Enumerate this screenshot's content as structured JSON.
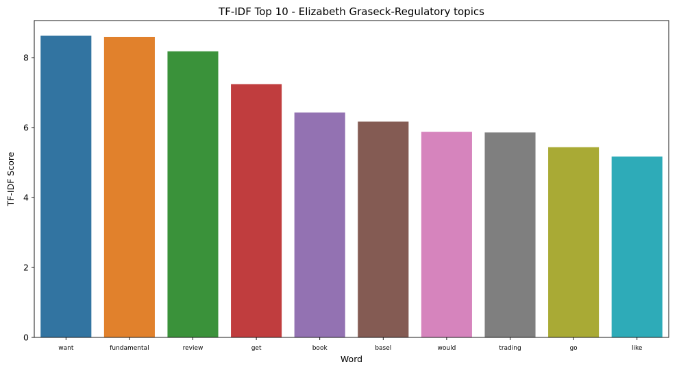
{
  "chart_data": {
    "type": "bar",
    "title": "TF-IDF Top 10 - Elizabeth Graseck-Regulatory topics",
    "xlabel": "Word",
    "ylabel": "TF-IDF Score",
    "categories": [
      "want",
      "fundamental",
      "review",
      "get",
      "book",
      "basel",
      "would",
      "trading",
      "go",
      "like"
    ],
    "values": [
      8.63,
      8.59,
      8.18,
      7.24,
      6.43,
      6.17,
      5.88,
      5.86,
      5.44,
      5.17
    ],
    "colors": [
      "#3274a1",
      "#e1812c",
      "#3a923a",
      "#c03d3e",
      "#9372b2",
      "#845b53",
      "#d684bd",
      "#7f7f7f",
      "#a9aa35",
      "#2eabb8"
    ],
    "ylim": [
      0,
      9.06
    ],
    "yticks": [
      0,
      2,
      4,
      6,
      8
    ],
    "grid": false,
    "legend": "none"
  }
}
